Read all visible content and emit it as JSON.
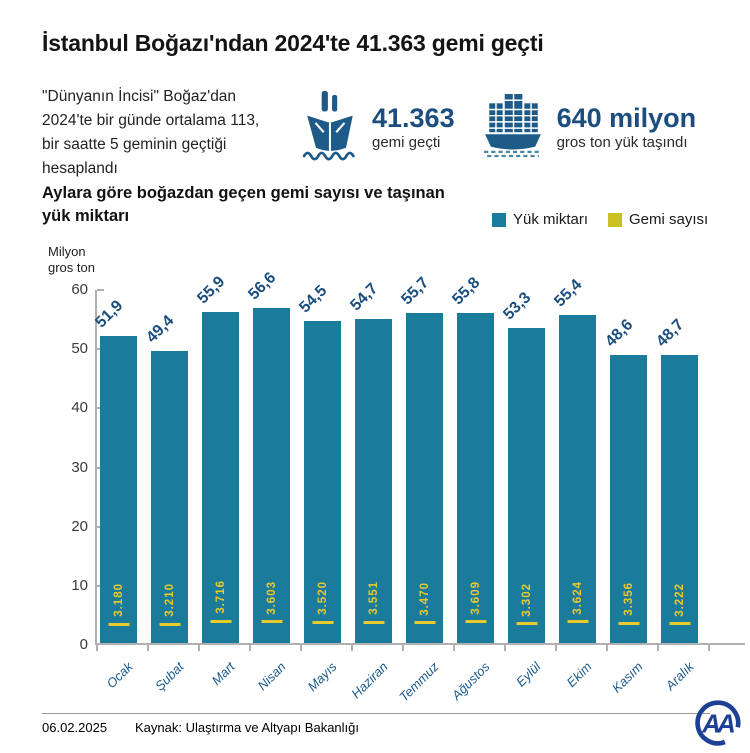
{
  "header": {
    "title": "İstanbul Boğazı'ndan 2024'te 41.363 gemi geçti",
    "description": "\"Dünyanın İncisi\" Boğaz'dan\n2024'te bir günde ortalama 113,\nbir saatte 5 geminin geçtiği\nhesaplandı",
    "stats": [
      {
        "icon": "passenger-ship-icon",
        "value": "41.363",
        "caption": "gemi geçti"
      },
      {
        "icon": "cargo-ship-icon",
        "value": "640 milyon",
        "caption": "gros ton yük taşındı"
      }
    ]
  },
  "colors": {
    "bar_teal": "#1b7b9b",
    "legend_yellow": "#c9c021",
    "inbar_yellow": "#e9ca2e",
    "navy_text": "#1b4e7e",
    "month_blue": "#1d5a8c",
    "axis_gray": "#b0b0b0",
    "logo_navy": "#1d3f94"
  },
  "chart_data": {
    "type": "bar",
    "title": "Aylara göre boğazdan geçen gemi sayısı ve taşınan\nyük miktarı",
    "categories": [
      "Ocak",
      "Şubat",
      "Mart",
      "Nisan",
      "Mayıs",
      "Haziran",
      "Temmuz",
      "Ağustos",
      "Eylül",
      "Ekim",
      "Kasım",
      "Aralık"
    ],
    "series": [
      {
        "name": "Yük miktarı",
        "render": "bar",
        "color": "#1b7b9b",
        "unit": "milyon gros ton",
        "values": [
          51.9,
          49.4,
          55.9,
          56.6,
          54.5,
          54.7,
          55.7,
          55.8,
          53.3,
          55.4,
          48.6,
          48.7
        ],
        "labels": [
          "51,9",
          "49,4",
          "55,9",
          "56,6",
          "54,5",
          "54,7",
          "55,7",
          "55,8",
          "53,3",
          "55,4",
          "48,6",
          "48,7"
        ]
      },
      {
        "name": "Gemi sayısı",
        "render": "tick-inside-bar",
        "color": "#c9c021",
        "unit": "gemi",
        "values": [
          3180,
          3210,
          3716,
          3603,
          3520,
          3551,
          3470,
          3609,
          3302,
          3624,
          3356,
          3222
        ],
        "labels": [
          "3.180",
          "3.210",
          "3.716",
          "3.603",
          "3.520",
          "3.551",
          "3.470",
          "3.609",
          "3.302",
          "3.624",
          "3.356",
          "3.222"
        ],
        "note": "plotted as value/1000 on the gros ton axis"
      }
    ],
    "ylabel": "Milyon\ngros ton",
    "ylim": [
      0,
      60
    ],
    "yticks": [
      0,
      10,
      20,
      30,
      40,
      50,
      60
    ],
    "grid": false,
    "legend_position": "top-right"
  },
  "footer": {
    "date": "06.02.2025",
    "source": "Kaynak: Ulaştırma ve Altyapı Bakanlığı",
    "logo": "AA"
  }
}
